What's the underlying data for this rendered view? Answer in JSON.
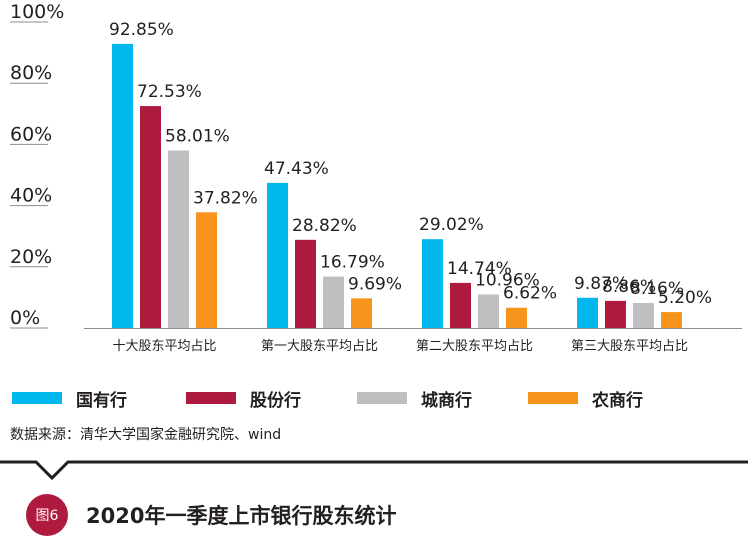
{
  "chart_data": {
    "type": "bar",
    "title": "2020年一季度上市银行股东统计",
    "categories": [
      "十大股东平均占比",
      "第一大股东平均占比",
      "第二大股东平均占比",
      "第三大股东平均占比"
    ],
    "series": [
      {
        "name": "国有行",
        "color": "#00b7ee",
        "values": [
          92.85,
          47.43,
          29.02,
          9.87
        ],
        "labels": [
          "92.85%",
          "47.43%",
          "29.02%",
          "9.87%"
        ]
      },
      {
        "name": "股份行",
        "color": "#ae1b3f",
        "values": [
          72.53,
          28.82,
          14.74,
          8.86
        ],
        "labels": [
          "72.53%",
          "28.82%",
          "14.74%",
          "8.86%"
        ]
      },
      {
        "name": "城商行",
        "color": "#bfbfc2",
        "values": [
          58.01,
          16.79,
          10.96,
          8.16
        ],
        "labels": [
          "58.01%",
          "16.79%",
          "10.96%",
          "8.16%"
        ]
      },
      {
        "name": "农商行",
        "color": "#f7941d",
        "values": [
          37.82,
          9.69,
          6.62,
          5.2
        ],
        "labels": [
          "37.82%",
          "9.69%",
          "6.62%",
          "5.20%"
        ]
      }
    ],
    "yticks": [
      "0%",
      "20%",
      "40%",
      "60%",
      "80%",
      "100%"
    ],
    "ylim": [
      0,
      100
    ],
    "legend": "bottom",
    "grid": false
  },
  "source_text": "数据来源：清华大学国家金融研究院、wind",
  "figure_badge": "图6",
  "caption_title": "2020年一季度上市银行股东统计"
}
